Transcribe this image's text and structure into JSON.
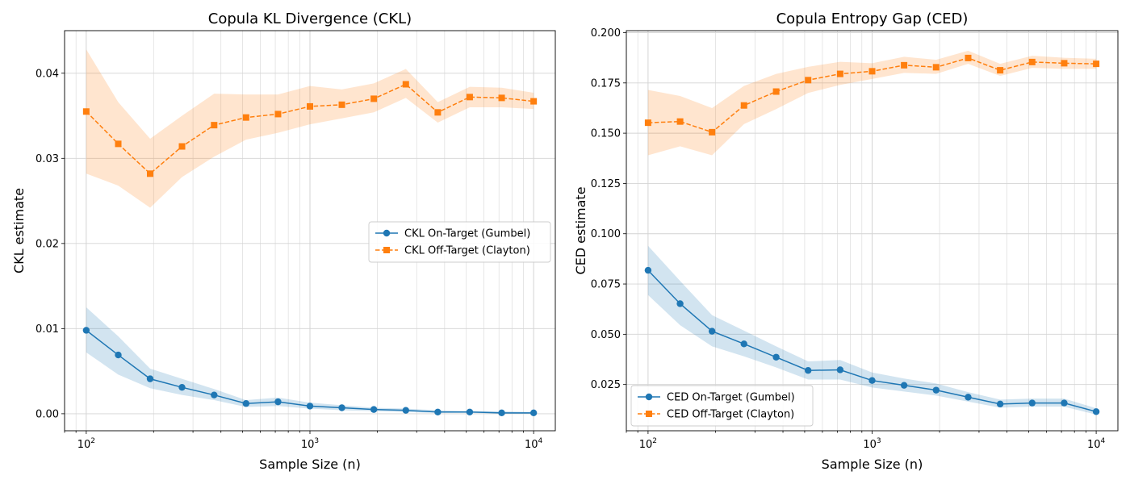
{
  "chart_data": [
    {
      "type": "line",
      "title": "Copula KL Divergence (CKL)",
      "xlabel": "Sample Size (n)",
      "ylabel": "CKL estimate",
      "xscale": "log",
      "xlim": [
        80,
        12500
      ],
      "ylim": [
        -0.002,
        0.045
      ],
      "xticks": [
        100,
        1000,
        10000
      ],
      "xtick_labels": [
        [
          "10",
          "2"
        ],
        [
          "10",
          "3"
        ],
        [
          "10",
          "4"
        ]
      ],
      "yticks": [
        0.0,
        0.01,
        0.02,
        0.03,
        0.04
      ],
      "ytick_labels": [
        "0.00",
        "0.01",
        "0.02",
        "0.03",
        "0.04"
      ],
      "grid": true,
      "legend_position": "center-right",
      "x": [
        100,
        139,
        193,
        268,
        373,
        518,
        720,
        1000,
        1389,
        1930,
        2683,
        3728,
        5179,
        7197,
        10000
      ],
      "series": [
        {
          "name": "CKL On-Target (Gumbel)",
          "color": "#1f77b4",
          "marker": "circle",
          "linestyle": "solid",
          "values": [
            0.0098,
            0.0069,
            0.0041,
            0.0031,
            0.0022,
            0.0012,
            0.0014,
            0.0009,
            0.0007,
            0.0005,
            0.0004,
            0.0002,
            0.0002,
            0.0001,
            0.0001
          ],
          "lower": [
            0.0072,
            0.0046,
            0.003,
            0.0022,
            0.0016,
            0.0008,
            0.0009,
            0.0006,
            0.0004,
            0.0003,
            0.0002,
            0.0001,
            0.0001,
            0.0,
            0.0
          ],
          "upper": [
            0.0125,
            0.0091,
            0.0053,
            0.0041,
            0.0029,
            0.0016,
            0.0019,
            0.0013,
            0.001,
            0.0007,
            0.0006,
            0.0004,
            0.0003,
            0.0003,
            0.0002
          ]
        },
        {
          "name": "CKL Off-Target (Clayton)",
          "color": "#ff7f0e",
          "marker": "square",
          "linestyle": "dashed",
          "values": [
            0.0355,
            0.0317,
            0.0282,
            0.0314,
            0.0339,
            0.0348,
            0.0352,
            0.0361,
            0.0363,
            0.037,
            0.0387,
            0.0354,
            0.0372,
            0.0371,
            0.0367
          ],
          "lower": [
            0.0282,
            0.0268,
            0.0242,
            0.0278,
            0.0302,
            0.0322,
            0.033,
            0.034,
            0.0347,
            0.0354,
            0.0371,
            0.0342,
            0.036,
            0.036,
            0.0358
          ],
          "upper": [
            0.0428,
            0.0366,
            0.0323,
            0.035,
            0.0376,
            0.0375,
            0.0375,
            0.0385,
            0.0381,
            0.0388,
            0.0405,
            0.0366,
            0.0384,
            0.0383,
            0.0377
          ]
        }
      ]
    },
    {
      "type": "line",
      "title": "Copula Entropy Gap (CED)",
      "xlabel": "Sample Size (n)",
      "ylabel": "CED estimate",
      "xscale": "log",
      "xlim": [
        80,
        12500
      ],
      "ylim": [
        0.002,
        0.201
      ],
      "xticks": [
        100,
        1000,
        10000
      ],
      "xtick_labels": [
        [
          "10",
          "2"
        ],
        [
          "10",
          "3"
        ],
        [
          "10",
          "4"
        ]
      ],
      "yticks": [
        0.025,
        0.05,
        0.075,
        0.1,
        0.125,
        0.15,
        0.175,
        0.2
      ],
      "ytick_labels": [
        "0.025",
        "0.050",
        "0.075",
        "0.100",
        "0.125",
        "0.150",
        "0.175",
        "0.200"
      ],
      "grid": true,
      "legend_position": "lower-left",
      "x": [
        100,
        139,
        193,
        268,
        373,
        518,
        720,
        1000,
        1389,
        1930,
        2683,
        3728,
        5179,
        7197,
        10000
      ],
      "series": [
        {
          "name": "CED On-Target (Gumbel)",
          "color": "#1f77b4",
          "marker": "circle",
          "linestyle": "solid",
          "values": [
            0.0818,
            0.0652,
            0.0515,
            0.0452,
            0.0386,
            0.032,
            0.0323,
            0.027,
            0.0246,
            0.0222,
            0.0187,
            0.0153,
            0.0158,
            0.0158,
            0.0115
          ],
          "lower": [
            0.0695,
            0.0545,
            0.044,
            0.039,
            0.0335,
            0.0275,
            0.0275,
            0.0235,
            0.0215,
            0.0195,
            0.0165,
            0.0135,
            0.014,
            0.014,
            0.01
          ],
          "upper": [
            0.094,
            0.0765,
            0.0595,
            0.0518,
            0.044,
            0.0365,
            0.0372,
            0.031,
            0.028,
            0.0255,
            0.0212,
            0.0175,
            0.018,
            0.018,
            0.0132
          ]
        },
        {
          "name": "CED Off-Target (Clayton)",
          "color": "#ff7f0e",
          "marker": "square",
          "linestyle": "dashed",
          "values": [
            0.1552,
            0.1558,
            0.1505,
            0.1638,
            0.1707,
            0.1764,
            0.1795,
            0.1808,
            0.1838,
            0.1828,
            0.1874,
            0.1813,
            0.1854,
            0.1848,
            0.1845
          ],
          "lower": [
            0.139,
            0.1435,
            0.139,
            0.1545,
            0.162,
            0.17,
            0.174,
            0.177,
            0.18,
            0.1795,
            0.1845,
            0.1785,
            0.1825,
            0.182,
            0.182
          ],
          "upper": [
            0.1715,
            0.1685,
            0.1625,
            0.1735,
            0.1795,
            0.183,
            0.1855,
            0.1848,
            0.188,
            0.1865,
            0.191,
            0.1845,
            0.1885,
            0.1875,
            0.187
          ]
        }
      ]
    }
  ]
}
